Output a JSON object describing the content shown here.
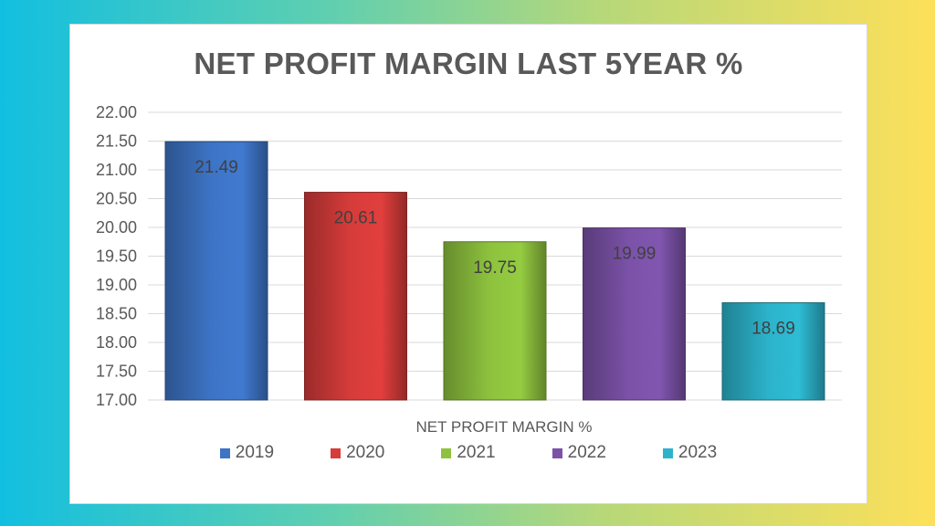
{
  "chart_data": {
    "type": "bar",
    "title": "NET PROFIT MARGIN LAST 5YEAR %",
    "xlabel": "NET PROFIT MARGIN %",
    "ylabel": "",
    "categories": [
      "NET PROFIT MARGIN %"
    ],
    "series": [
      {
        "name": "2019",
        "values": [
          21.49
        ],
        "color": "#3d74c6",
        "label": "21.49"
      },
      {
        "name": "2020",
        "values": [
          20.61
        ],
        "color": "#d63c3a",
        "label": "20.61"
      },
      {
        "name": "2021",
        "values": [
          19.75
        ],
        "color": "#8ec23e",
        "label": "19.75"
      },
      {
        "name": "2022",
        "values": [
          19.99
        ],
        "color": "#7b52a8",
        "label": "19.99"
      },
      {
        "name": "2023",
        "values": [
          18.69
        ],
        "color": "#2cb3cb",
        "label": "18.69"
      }
    ],
    "ylim": [
      17.0,
      22.0
    ],
    "yticks": [
      "22.00",
      "21.50",
      "21.00",
      "20.50",
      "20.00",
      "19.50",
      "19.00",
      "18.50",
      "18.00",
      "17.50",
      "17.00"
    ],
    "grid": true,
    "legend": "bottom"
  }
}
